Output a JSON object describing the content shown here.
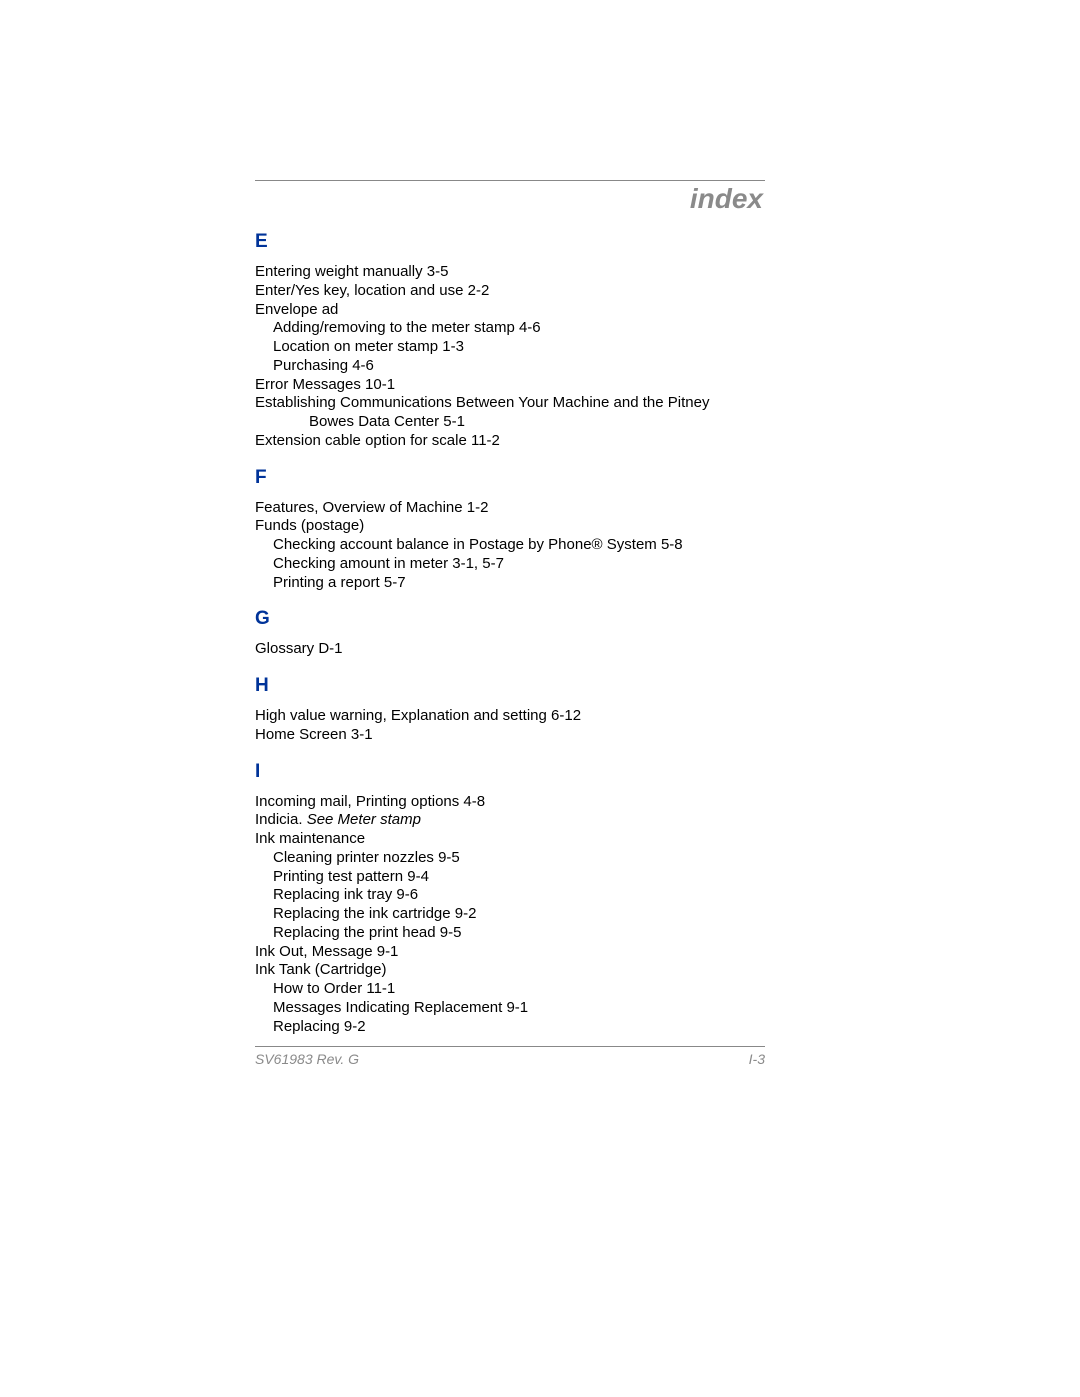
{
  "page_title": "index",
  "colors": {
    "heading": "#003399",
    "body": "#000000",
    "muted": "#8a8a8a",
    "rule": "#888888",
    "background": "#ffffff"
  },
  "typography": {
    "body_fontsize_pt": 11,
    "heading_fontsize_pt": 14,
    "title_fontsize_pt": 21,
    "font_family": "Arial"
  },
  "sections": [
    {
      "letter": "E",
      "lines": [
        {
          "text": "Entering weight manually  3-5",
          "indent": 0
        },
        {
          "text": "Enter/Yes key, location and use  2-2",
          "indent": 0
        },
        {
          "text": "Envelope ad",
          "indent": 0
        },
        {
          "text": "Adding/removing to the meter stamp  4-6",
          "indent": 1
        },
        {
          "text": "Location on meter stamp  1-3",
          "indent": 1
        },
        {
          "text": "Purchasing  4-6",
          "indent": 1
        },
        {
          "text": "Error Messages  10-1",
          "indent": 0
        },
        {
          "text": "Establishing Communications Between Your Machine and the Pitney",
          "indent": 0
        },
        {
          "text": "Bowes Data Center  5-1",
          "indent": 2
        },
        {
          "text": "Extension cable option for scale  11-2",
          "indent": 0
        }
      ]
    },
    {
      "letter": "F",
      "lines": [
        {
          "text": "Features, Overview of Machine  1-2",
          "indent": 0
        },
        {
          "text": "Funds (postage)",
          "indent": 0
        },
        {
          "text": "Checking account balance in Postage by Phone® System  5-8",
          "indent": 1
        },
        {
          "text": "Checking amount in meter  3-1, 5-7",
          "indent": 1
        },
        {
          "text": "Printing a report  5-7",
          "indent": 1
        }
      ]
    },
    {
      "letter": "G",
      "lines": [
        {
          "text": "Glossary  D-1",
          "indent": 0
        }
      ]
    },
    {
      "letter": "H",
      "lines": [
        {
          "text": "High value warning, Explanation and setting  6-12",
          "indent": 0
        },
        {
          "text": "Home Screen  3-1",
          "indent": 0
        }
      ]
    },
    {
      "letter": "I",
      "lines": [
        {
          "text": "Incoming mail, Printing options  4-8",
          "indent": 0
        },
        {
          "text_pre": "Indicia. ",
          "text_italic": "See Meter stamp",
          "indent": 0,
          "has_italic": true
        },
        {
          "text": "Ink maintenance",
          "indent": 0
        },
        {
          "text": "Cleaning printer nozzles  9-5",
          "indent": 1
        },
        {
          "text": "Printing test pattern  9-4",
          "indent": 1
        },
        {
          "text": "Replacing ink tray  9-6",
          "indent": 1
        },
        {
          "text": "Replacing the ink cartridge  9-2",
          "indent": 1
        },
        {
          "text": "Replacing the print head  9-5",
          "indent": 1
        },
        {
          "text": "Ink Out, Message  9-1",
          "indent": 0
        },
        {
          "text": "Ink Tank (Cartridge)",
          "indent": 0
        },
        {
          "text": "How to Order  11-1",
          "indent": 1
        },
        {
          "text": "Messages Indicating Replacement  9-1",
          "indent": 1
        },
        {
          "text": "Replacing  9-2",
          "indent": 1
        }
      ]
    }
  ],
  "footer": {
    "left": "SV61983 Rev. G",
    "right": "I-3"
  }
}
